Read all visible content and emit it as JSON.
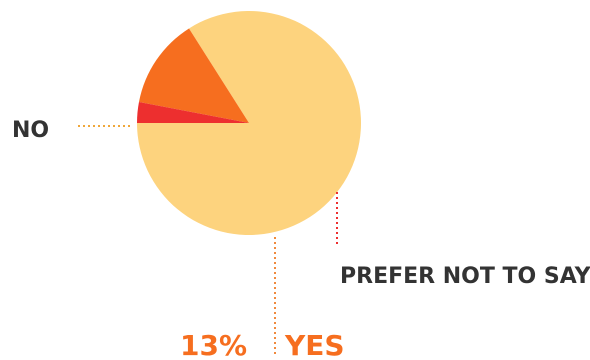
{
  "chart_data": {
    "type": "pie",
    "title": "",
    "start_angle_deg": 180,
    "direction": "counterclockwise",
    "slices": [
      {
        "label": "NO",
        "value": 84,
        "value_label": "",
        "color": "#FDD37E"
      },
      {
        "label": "YES",
        "value": 13,
        "value_label": "13%",
        "color": "#F66E1F"
      },
      {
        "label": "PREFER NOT TO SAY",
        "value": 3,
        "value_label": "",
        "color": "#ED2F2F"
      }
    ],
    "label_colors": {
      "NO": "#333333",
      "YES": "#F66E1F",
      "PREFER NOT TO SAY": "#333333"
    },
    "leader_colors": {
      "NO": "#F0A73A",
      "YES": "#F08A3E",
      "PREFER NOT TO SAY": "#ED2F2F"
    }
  }
}
